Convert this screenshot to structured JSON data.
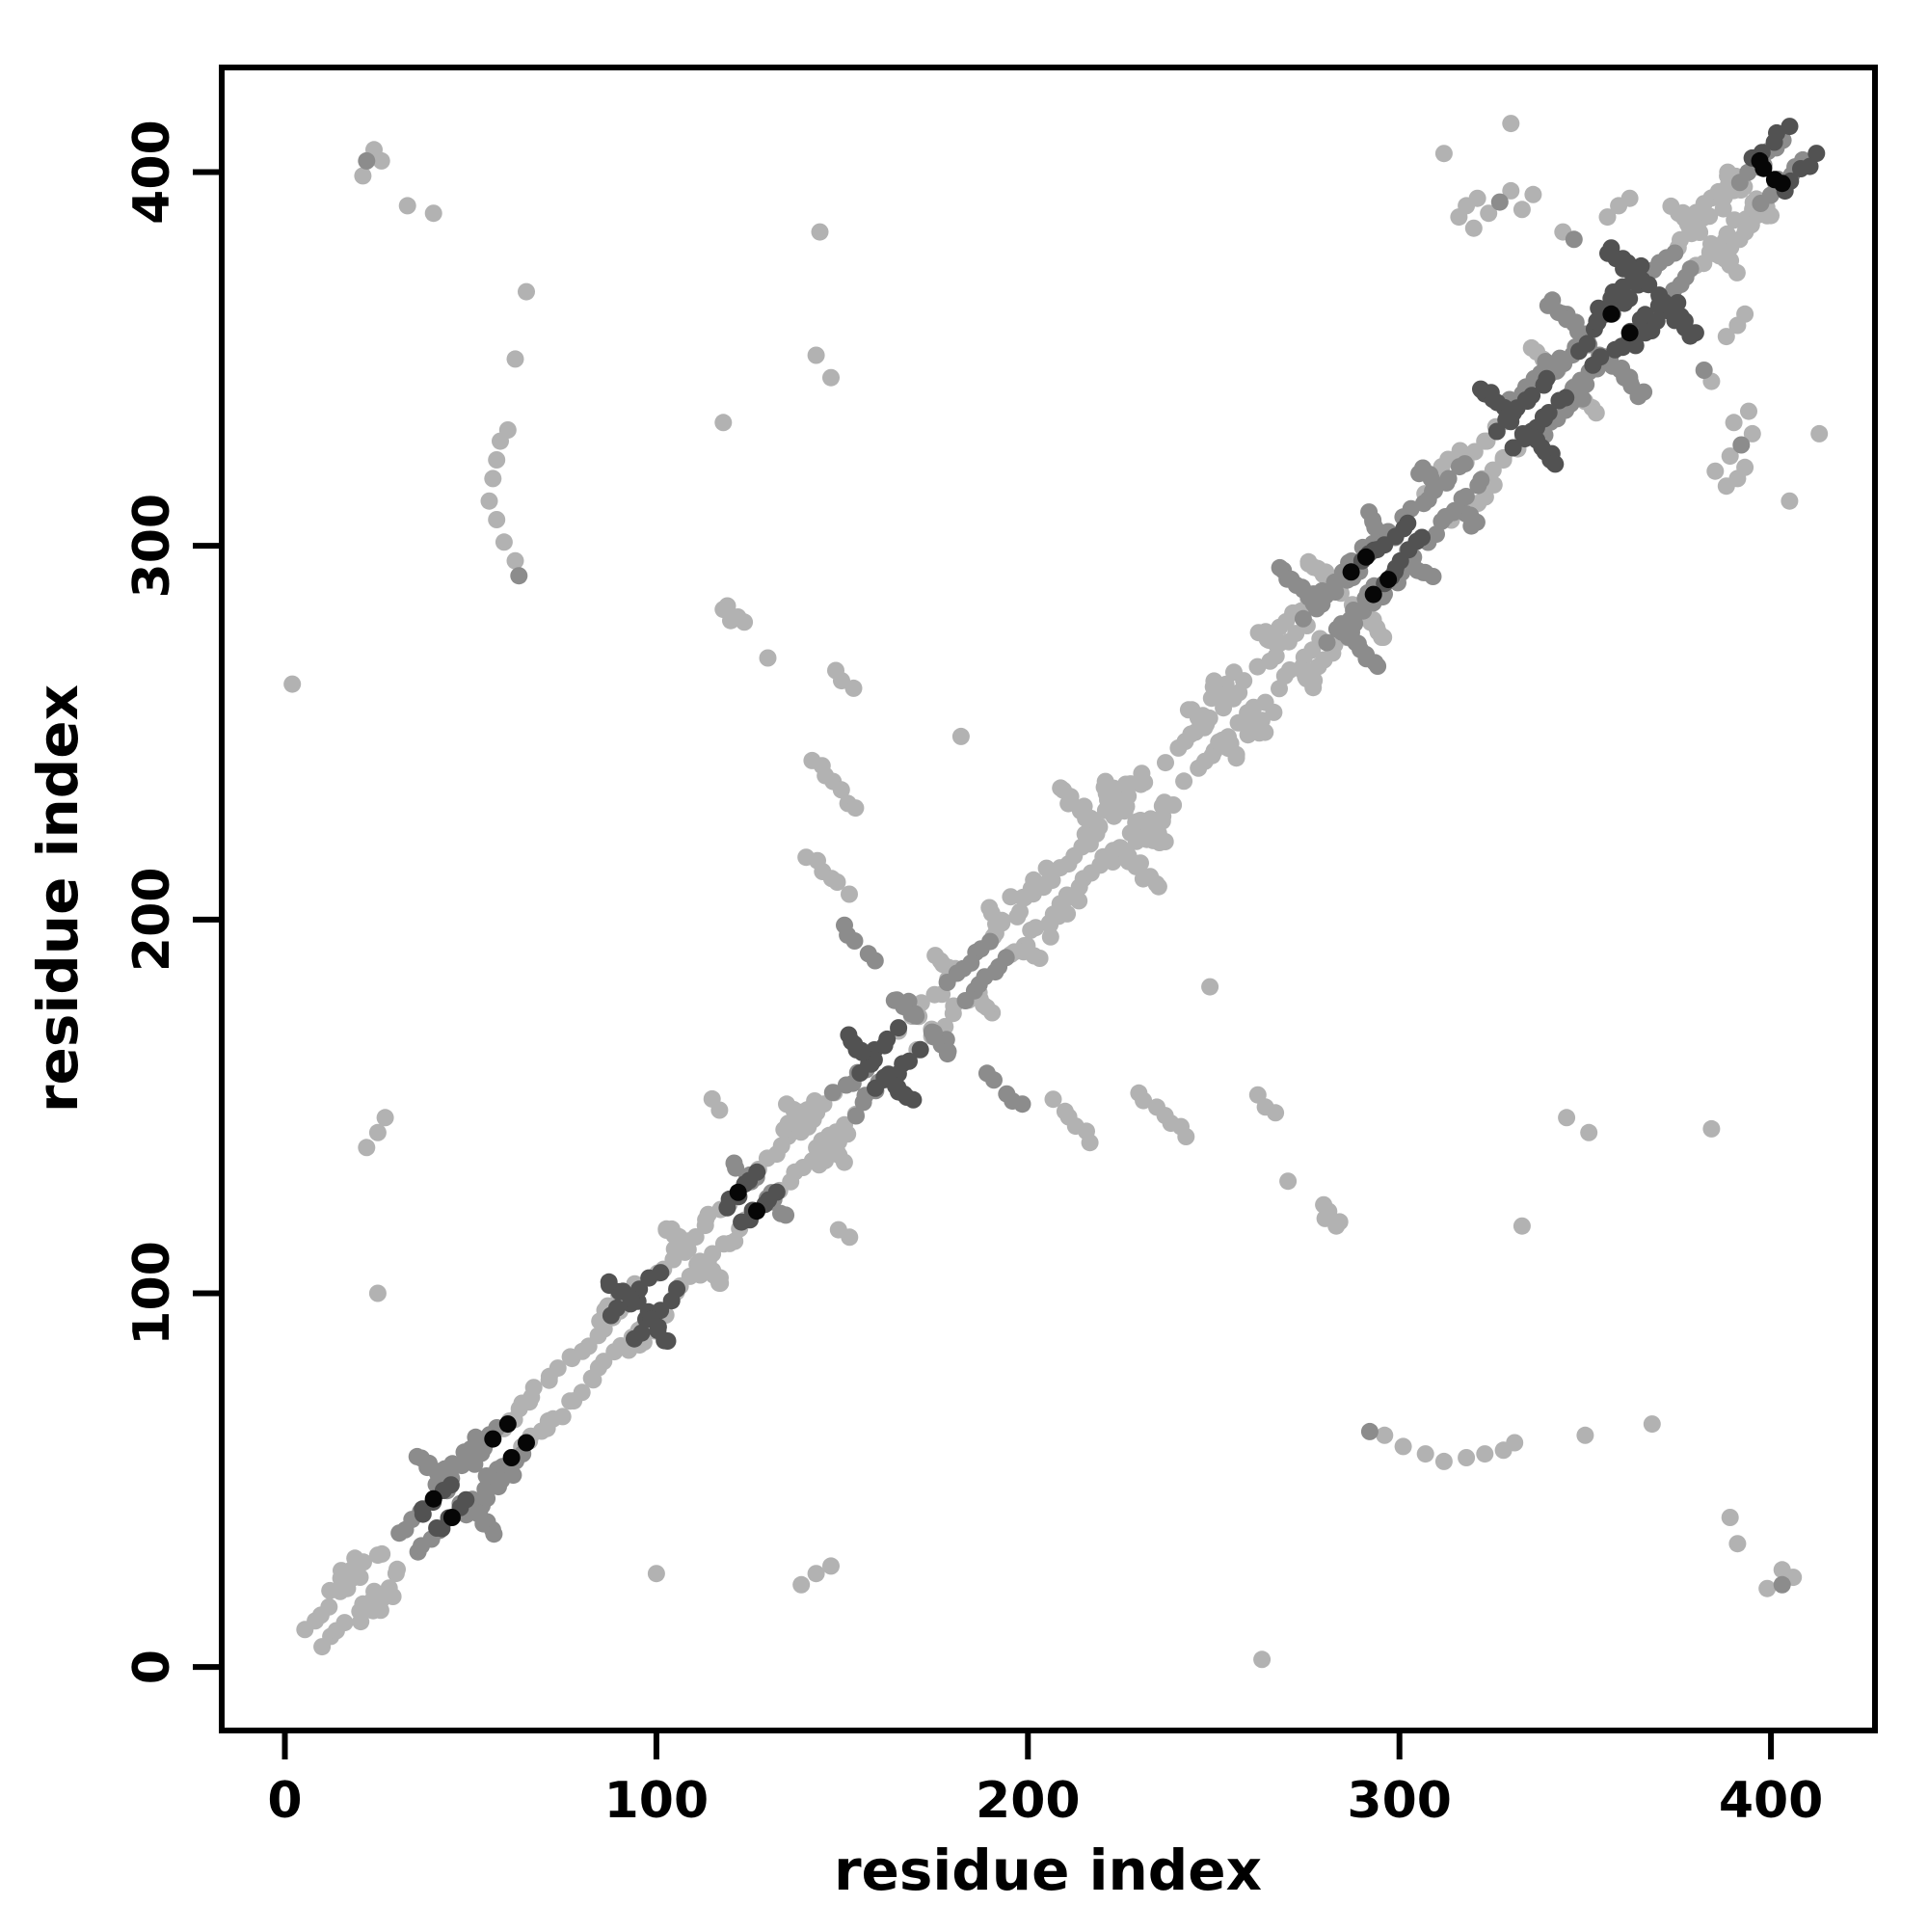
{
  "chart_data": {
    "type": "scatter",
    "title": "",
    "xlabel": "residue index",
    "ylabel": "residue index",
    "xlim": [
      -17,
      428
    ],
    "ylim": [
      -17,
      428
    ],
    "xticks": [
      0,
      100,
      200,
      300,
      400
    ],
    "yticks": [
      0,
      100,
      200,
      300,
      400
    ],
    "grid": false,
    "legend": null,
    "symmetric": true,
    "description": "Protein residue-residue contact map; symmetric scatter of contact pairs (i,j). band_runs are diagonal runs [i_start,i_end,offset,shade] giving points (i,i+offset); anti_runs are antidiagonal runs [cx,cy,arm,shade] giving points (cx+k,cy-k); points are explicit [x,y,shade] pairs (mirrored across the diagonal). shade indexes shade_colors from light gray to black.",
    "marker": {
      "shape": "circle",
      "radius_px": 9
    },
    "shade_colors": [
      "#b2b2b2",
      "#8c8c8c",
      "#525252",
      "#060606"
    ],
    "band_runs": [
      [
        6,
        26,
        5,
        0
      ],
      [
        12,
        20,
        9,
        0
      ],
      [
        30,
        36,
        5,
        1
      ],
      [
        36,
        45,
        5,
        2
      ],
      [
        44,
        58,
        5,
        1
      ],
      [
        40,
        52,
        9,
        1
      ],
      [
        58,
        66,
        5,
        0
      ],
      [
        64,
        76,
        6,
        0
      ],
      [
        78,
        92,
        5,
        0
      ],
      [
        88,
        100,
        5,
        2
      ],
      [
        84,
        94,
        9,
        0
      ],
      [
        100,
        113,
        5,
        0
      ],
      [
        113,
        119,
        6,
        0
      ],
      [
        118,
        128,
        5,
        2
      ],
      [
        128,
        148,
        5,
        0
      ],
      [
        134,
        142,
        9,
        0
      ],
      [
        148,
        156,
        5,
        1
      ],
      [
        155,
        166,
        5,
        2
      ],
      [
        166,
        178,
        5,
        0
      ],
      [
        178,
        190,
        5,
        1
      ],
      [
        190,
        206,
        5,
        0
      ],
      [
        196,
        204,
        9,
        0
      ],
      [
        206,
        218,
        6,
        0
      ],
      [
        216,
        233,
        5,
        0
      ],
      [
        220,
        230,
        9,
        0
      ],
      [
        238,
        248,
        5,
        0
      ],
      [
        248,
        258,
        5,
        0
      ],
      [
        250,
        256,
        9,
        0
      ],
      [
        262,
        275,
        5,
        0
      ],
      [
        275,
        290,
        5,
        1
      ],
      [
        280,
        292,
        9,
        1
      ],
      [
        268,
        284,
        9,
        0
      ],
      [
        290,
        302,
        5,
        2
      ],
      [
        302,
        318,
        5,
        1
      ],
      [
        306,
        316,
        9,
        0
      ],
      [
        318,
        328,
        5,
        0
      ],
      [
        326,
        340,
        5,
        2
      ],
      [
        330,
        342,
        9,
        1
      ],
      [
        340,
        350,
        5,
        1
      ],
      [
        348,
        362,
        5,
        2
      ],
      [
        352,
        366,
        9,
        2
      ],
      [
        362,
        374,
        5,
        1
      ],
      [
        374,
        392,
        5,
        0
      ],
      [
        378,
        390,
        9,
        0
      ],
      [
        392,
        404,
        5,
        1
      ],
      [
        396,
        404,
        8,
        2
      ]
    ],
    "anti_runs": [
      [
        46,
        46,
        10,
        1
      ],
      [
        95,
        95,
        7,
        2
      ],
      [
        110,
        110,
        8,
        0
      ],
      [
        128,
        128,
        6,
        1
      ],
      [
        143,
        143,
        7,
        0
      ],
      [
        160,
        160,
        8,
        2
      ],
      [
        172,
        172,
        7,
        1
      ],
      [
        183,
        183,
        7,
        0
      ],
      [
        196,
        196,
        6,
        0
      ],
      [
        222,
        222,
        12,
        0
      ],
      [
        228,
        228,
        8,
        0
      ],
      [
        250,
        250,
        6,
        0
      ],
      [
        257,
        257,
        6,
        0
      ],
      [
        270,
        270,
        7,
        0
      ],
      [
        281,
        281,
        13,
        1
      ],
      [
        286,
        286,
        10,
        0
      ],
      [
        300,
        300,
        8,
        1
      ],
      [
        313,
        313,
        7,
        1
      ],
      [
        332,
        332,
        10,
        2
      ],
      [
        344,
        344,
        8,
        0
      ],
      [
        353,
        353,
        12,
        1
      ],
      [
        368,
        368,
        11,
        2
      ],
      [
        382,
        382,
        8,
        0
      ],
      [
        394,
        394,
        6,
        0
      ],
      [
        148,
        236,
        6,
        0
      ],
      [
        146,
        212,
        5,
        0
      ],
      [
        154,
        194,
        4,
        1
      ],
      [
        121,
        281,
        2,
        0
      ],
      [
        150,
        264,
        2,
        0
      ]
    ],
    "points": [
      [
        22,
        403,
        1
      ],
      [
        24,
        406,
        0
      ],
      [
        26,
        403,
        0
      ],
      [
        21,
        399,
        0
      ],
      [
        33,
        391,
        0
      ],
      [
        40,
        389,
        0
      ],
      [
        55,
        312,
        0
      ],
      [
        56,
        318,
        0
      ],
      [
        57,
        323,
        0
      ],
      [
        58,
        328,
        0
      ],
      [
        60,
        331,
        0
      ],
      [
        57,
        307,
        0
      ],
      [
        59,
        301,
        0
      ],
      [
        62,
        296,
        0
      ],
      [
        63,
        292,
        1
      ],
      [
        62,
        350,
        0
      ],
      [
        65,
        368,
        0
      ],
      [
        2,
        263,
        0
      ],
      [
        25,
        100,
        0
      ],
      [
        22,
        139,
        0
      ],
      [
        25,
        143,
        0
      ],
      [
        27,
        147,
        0
      ],
      [
        115,
        152,
        0
      ],
      [
        117,
        149,
        0
      ],
      [
        118,
        283,
        0
      ],
      [
        120,
        280,
        0
      ],
      [
        130,
        270,
        0
      ],
      [
        182,
        249,
        0
      ],
      [
        118,
        333,
        0
      ],
      [
        143,
        351,
        0
      ],
      [
        147,
        345,
        0
      ],
      [
        144,
        384,
        0
      ],
      [
        316,
        388,
        0
      ],
      [
        318,
        391,
        0
      ],
      [
        321,
        393,
        0
      ],
      [
        324,
        389,
        0
      ],
      [
        327,
        392,
        1
      ],
      [
        330,
        395,
        0
      ],
      [
        333,
        390,
        0
      ],
      [
        336,
        394,
        0
      ],
      [
        320,
        385,
        0
      ],
      [
        344,
        384,
        0
      ],
      [
        347,
        382,
        1
      ],
      [
        356,
        388,
        0
      ],
      [
        359,
        391,
        0
      ],
      [
        362,
        393,
        0
      ],
      [
        330,
        413,
        0
      ],
      [
        312,
        405,
        0
      ],
      [
        294,
        299,
        2
      ],
      [
        334,
        339,
        2
      ],
      [
        40,
        45,
        3
      ],
      [
        56,
        61,
        3
      ],
      [
        60,
        65,
        3
      ],
      [
        122,
        127,
        3
      ],
      [
        287,
        293,
        3
      ],
      [
        291,
        297,
        3
      ],
      [
        357,
        362,
        3
      ],
      [
        397,
        403,
        3
      ],
      [
        401,
        398,
        3
      ]
    ]
  }
}
